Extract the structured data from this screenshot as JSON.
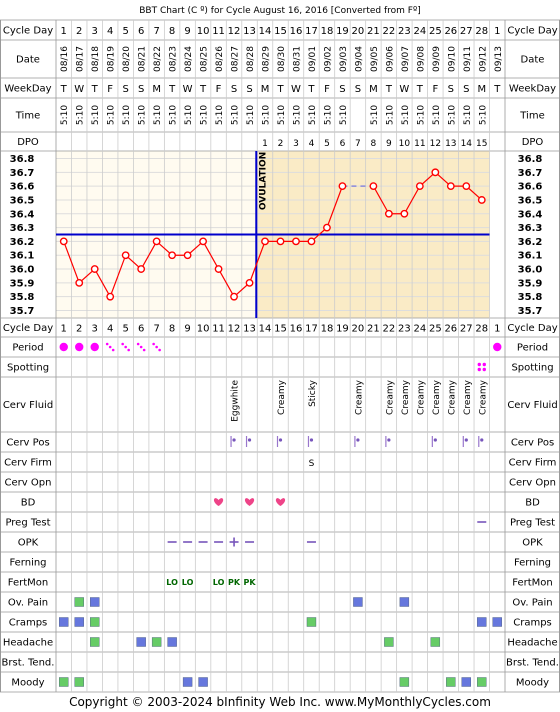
{
  "title": "BBT Chart (C º) for Cycle August 16, 2016  [Converted from Fº]",
  "footer": "Copyright © 2003-2024 bInfinity Web Inc.    www.MyMonthlyCycles.com",
  "colors": {
    "pre_ovulation_bg": "#fffbf0",
    "post_ovulation_bg": "#faebc6",
    "temp_line": "#ff0000",
    "coverline": "#0000cc",
    "period": "#ff00ff",
    "green_box": "#66cc66",
    "blue_box": "#6677dd",
    "fertmon_text": "#006600",
    "heart": "#ee4488"
  },
  "row_labels": {
    "cycle_day": "Cycle Day",
    "date": "Date",
    "weekday": "WeekDay",
    "time": "Time",
    "dpo": "DPO",
    "period": "Period",
    "spotting": "Spotting",
    "cerv_fluid": "Cerv Fluid",
    "cerv_pos": "Cerv Pos",
    "cerv_firm": "Cerv Firm",
    "cerv_opn": "Cerv Opn",
    "bd": "BD",
    "preg_test": "Preg Test",
    "opk": "OPK",
    "ferning": "Ferning",
    "fertmon": "FertMon",
    "ov_pain": "Ov. Pain",
    "cramps": "Cramps",
    "headache": "Headache",
    "brst_tend": "Brst. Tend.",
    "moody": "Moody"
  },
  "ovulation_label": "OVULATION",
  "days": [
    "1",
    "2",
    "3",
    "4",
    "5",
    "6",
    "7",
    "8",
    "9",
    "10",
    "11",
    "12",
    "13",
    "14",
    "15",
    "16",
    "17",
    "18",
    "19",
    "20",
    "21",
    "22",
    "23",
    "24",
    "25",
    "26",
    "27",
    "28",
    "1"
  ],
  "dates": [
    "08/16",
    "08/17",
    "08/18",
    "08/19",
    "08/20",
    "08/21",
    "08/22",
    "08/23",
    "08/24",
    "08/25",
    "08/26",
    "08/27",
    "08/28",
    "08/29",
    "08/30",
    "08/31",
    "09/01",
    "09/02",
    "09/03",
    "09/04",
    "09/05",
    "09/06",
    "09/07",
    "09/08",
    "09/09",
    "09/10",
    "09/11",
    "09/12",
    "09/13"
  ],
  "weekdays": [
    "T",
    "W",
    "T",
    "F",
    "S",
    "S",
    "M",
    "T",
    "W",
    "T",
    "F",
    "S",
    "S",
    "M",
    "T",
    "W",
    "T",
    "F",
    "S",
    "S",
    "M",
    "T",
    "W",
    "T",
    "F",
    "S",
    "S",
    "M",
    "T"
  ],
  "times": [
    "5:10",
    "5:10",
    "5:10",
    "5:10",
    "5:10",
    "5:10",
    "5:10",
    "5:10",
    "5:10",
    "5:10",
    "5:10",
    "5:10",
    "5:10",
    "5:10",
    "5:10",
    "5:10",
    "5:10",
    "5:10",
    "5:10",
    "",
    "5:10",
    "5:10",
    "5:10",
    "5:10",
    "5:10",
    "5:10",
    "5:10",
    "5:10",
    ""
  ],
  "dpo": [
    "",
    "",
    "",
    "",
    "",
    "",
    "",
    "",
    "",
    "",
    "",
    "",
    "",
    "1",
    "2",
    "3",
    "4",
    "5",
    "6",
    "7",
    "8",
    "9",
    "10",
    "11",
    "12",
    "13",
    "14",
    "15",
    ""
  ],
  "cerv_fluid": [
    "",
    "",
    "",
    "",
    "",
    "",
    "",
    "",
    "",
    "",
    "",
    "Eggwhite",
    "",
    "",
    "Creamy",
    "",
    "Sticky",
    "",
    "",
    "Creamy",
    "",
    "Creamy",
    "Creamy",
    "Creamy",
    "Creamy",
    "Creamy",
    "Creamy",
    "Creamy",
    ""
  ],
  "cerv_firm": [
    "",
    "",
    "",
    "",
    "",
    "",
    "",
    "",
    "",
    "",
    "",
    "",
    "",
    "",
    "",
    "",
    "S",
    "",
    "",
    "",
    "",
    "",
    "",
    "",
    "",
    "",
    "",
    "",
    ""
  ],
  "fertmon": [
    "",
    "",
    "",
    "",
    "",
    "",
    "",
    "LO",
    "LO",
    "",
    "LO",
    "PK",
    "PK",
    "",
    "",
    "",
    "",
    "",
    "",
    "",
    "",
    "",
    "",
    "",
    "",
    "",
    "",
    "",
    ""
  ],
  "chart_data": {
    "type": "line",
    "title": "BBT Chart (C º) for Cycle August 16, 2016  [Converted from Fº]",
    "x": [
      "1",
      "2",
      "3",
      "4",
      "5",
      "6",
      "7",
      "8",
      "9",
      "10",
      "11",
      "12",
      "13",
      "14",
      "15",
      "16",
      "17",
      "18",
      "19",
      "20",
      "21",
      "22",
      "23",
      "24",
      "25",
      "26",
      "27",
      "28",
      "1"
    ],
    "series": [
      {
        "values": [
          36.2,
          35.9,
          36.0,
          35.8,
          36.1,
          36.0,
          36.2,
          36.1,
          36.1,
          36.2,
          36.0,
          35.8,
          35.9,
          36.2,
          36.2,
          36.2,
          36.2,
          36.3,
          36.6,
          null,
          36.6,
          36.4,
          36.4,
          36.6,
          36.7,
          36.6,
          36.6,
          36.5,
          null
        ]
      }
    ],
    "dashed_bridge": {
      "from_day_index": 18,
      "to_day_index": 20
    },
    "coverline": 36.25,
    "ovulation_day": 13,
    "ylim": [
      35.7,
      36.8
    ],
    "yticks": [
      "36.8",
      "36.7",
      "36.6",
      "36.5",
      "36.4",
      "36.3",
      "36.2",
      "36.1",
      "36.0",
      "35.9",
      "35.8",
      "35.7"
    ],
    "grid": true
  },
  "markers": {
    "period": [
      {
        "day": 1,
        "kind": "dot"
      },
      {
        "day": 2,
        "kind": "dot"
      },
      {
        "day": 3,
        "kind": "dot"
      },
      {
        "day": 4,
        "kind": "dots"
      },
      {
        "day": 5,
        "kind": "dots"
      },
      {
        "day": 6,
        "kind": "dots"
      },
      {
        "day": 7,
        "kind": "dots"
      },
      {
        "day": 29,
        "kind": "dot"
      }
    ],
    "spotting": [
      28
    ],
    "cerv_pos": [
      12,
      13,
      15,
      17,
      20,
      22,
      25,
      27,
      28
    ],
    "bd": [
      11,
      13,
      15
    ],
    "preg_test": [
      28
    ],
    "opk": [
      {
        "day": 8,
        "kind": "neg"
      },
      {
        "day": 9,
        "kind": "neg"
      },
      {
        "day": 10,
        "kind": "neg"
      },
      {
        "day": 11,
        "kind": "neg"
      },
      {
        "day": 12,
        "kind": "pos"
      },
      {
        "day": 13,
        "kind": "neg"
      },
      {
        "day": 17,
        "kind": "neg"
      }
    ],
    "ov_pain": [
      {
        "day": 2,
        "c": "green"
      },
      {
        "day": 3,
        "c": "blue"
      },
      {
        "day": 20,
        "c": "blue"
      },
      {
        "day": 23,
        "c": "blue"
      }
    ],
    "cramps": [
      {
        "day": 1,
        "c": "blue"
      },
      {
        "day": 2,
        "c": "blue"
      },
      {
        "day": 3,
        "c": "green"
      },
      {
        "day": 17,
        "c": "green"
      },
      {
        "day": 28,
        "c": "blue"
      },
      {
        "day": 29,
        "c": "blue"
      }
    ],
    "headache": [
      {
        "day": 3,
        "c": "green"
      },
      {
        "day": 6,
        "c": "blue"
      },
      {
        "day": 7,
        "c": "green"
      },
      {
        "day": 8,
        "c": "blue"
      },
      {
        "day": 22,
        "c": "green"
      },
      {
        "day": 25,
        "c": "green"
      }
    ],
    "moody": [
      {
        "day": 1,
        "c": "green"
      },
      {
        "day": 2,
        "c": "green"
      },
      {
        "day": 9,
        "c": "blue"
      },
      {
        "day": 10,
        "c": "blue"
      },
      {
        "day": 23,
        "c": "green"
      },
      {
        "day": 26,
        "c": "green"
      },
      {
        "day": 27,
        "c": "blue"
      },
      {
        "day": 28,
        "c": "green"
      }
    ]
  }
}
